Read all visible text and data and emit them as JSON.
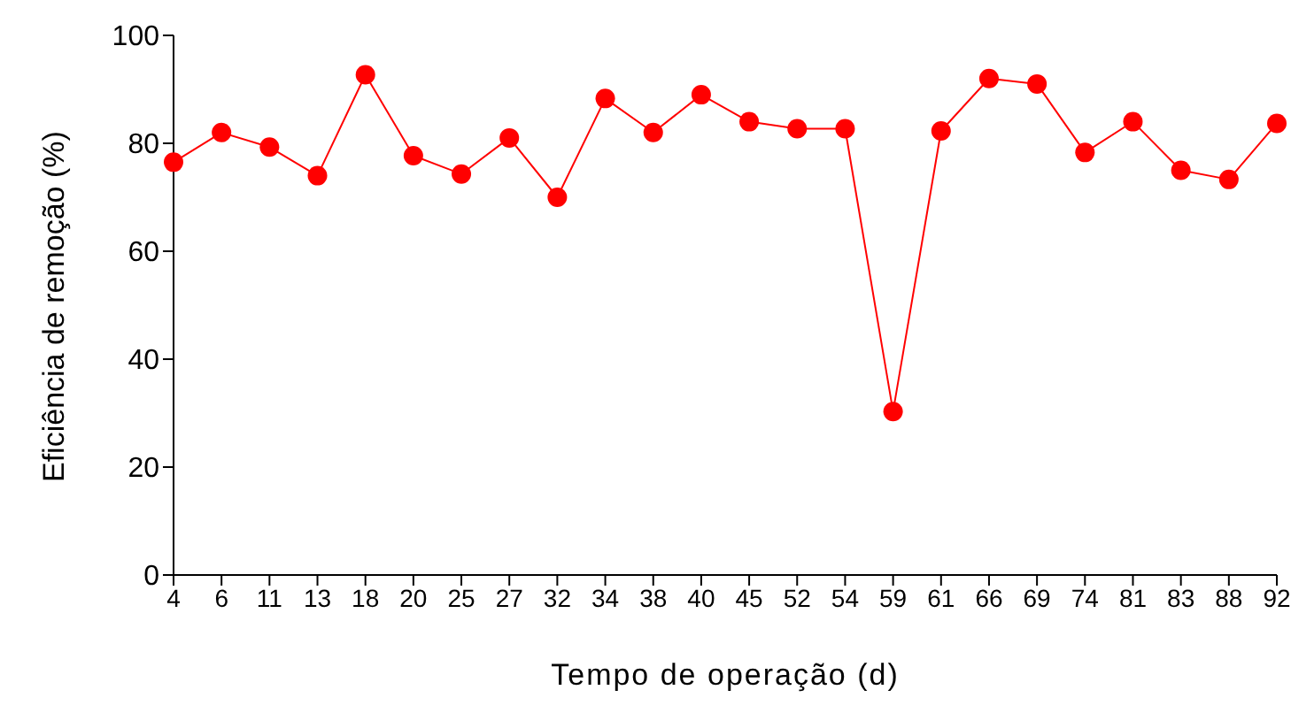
{
  "chart_data": {
    "type": "line",
    "xlabel": "Tempo de operação (d)",
    "ylabel": "Eficiência de remoção (%)",
    "categories": [
      "4",
      "6",
      "11",
      "13",
      "18",
      "20",
      "25",
      "27",
      "32",
      "34",
      "38",
      "40",
      "45",
      "52",
      "54",
      "59",
      "61",
      "66",
      "69",
      "74",
      "81",
      "83",
      "88",
      "92"
    ],
    "series": [
      {
        "color": "#ff0000",
        "values": [
          76.5,
          82,
          79.3,
          74,
          92.7,
          77.7,
          74.3,
          81,
          70,
          88.3,
          82,
          89,
          84,
          82.7,
          82.7,
          30.3,
          82.3,
          92,
          91,
          78.3,
          84,
          75,
          73.3,
          83.7
        ]
      }
    ],
    "ylim": [
      0,
      100
    ],
    "yticks": [
      0,
      20,
      40,
      60,
      80,
      100
    ],
    "grid": false,
    "legend": false,
    "marker": "circle",
    "line_style": "solid"
  }
}
